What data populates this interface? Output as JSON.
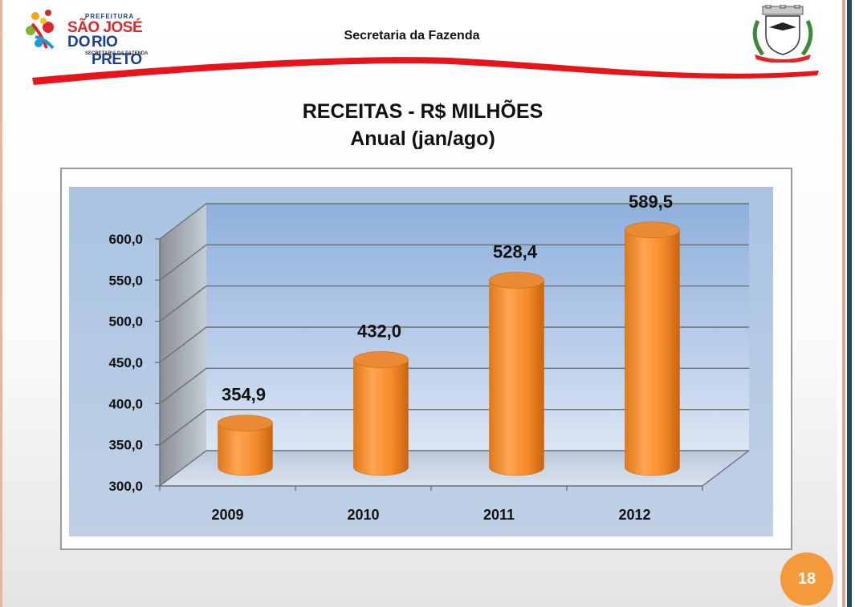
{
  "header": {
    "logo": {
      "prefeitura": "PREFEITURA",
      "line1": "SÃO JOSÉ",
      "line2a": "DO",
      "line2b": "RIO PRETO",
      "secretaria": "SECRETARIA DA FAZENDA"
    },
    "title": "Secretaria da Fazenda",
    "crest_icon": "coat-of-arms-icon"
  },
  "colors": {
    "accent_red": "#e0262b",
    "brand_blue": "#1a3f8f",
    "bar_orange": "#f7993e",
    "plot_blue": "#b7cce3",
    "page_badge": "#f59a3a"
  },
  "chart_title": {
    "line1": "RECEITAS  -  R$ MILHÕES",
    "line2": "Anual (jan/ago)"
  },
  "chart_data": {
    "type": "bar",
    "style": "3d-cylinder",
    "title": "RECEITAS  -  R$ MILHÕES",
    "subtitle": "Anual (jan/ago)",
    "categories": [
      "2009",
      "2010",
      "2011",
      "2012"
    ],
    "values": [
      354.9,
      432.0,
      528.4,
      589.5
    ],
    "data_labels": [
      "354,9",
      "432,0",
      "528,4",
      "589,5"
    ],
    "yticks": [
      300,
      350,
      400,
      450,
      500,
      550,
      600
    ],
    "ytick_labels": [
      "300,0",
      "350,0",
      "400,0",
      "450,0",
      "500,0",
      "550,0",
      "600,0"
    ],
    "ylim": [
      300,
      600
    ],
    "grid": true,
    "legend": "none",
    "xlabel": "",
    "ylabel": ""
  },
  "page_number": "18"
}
